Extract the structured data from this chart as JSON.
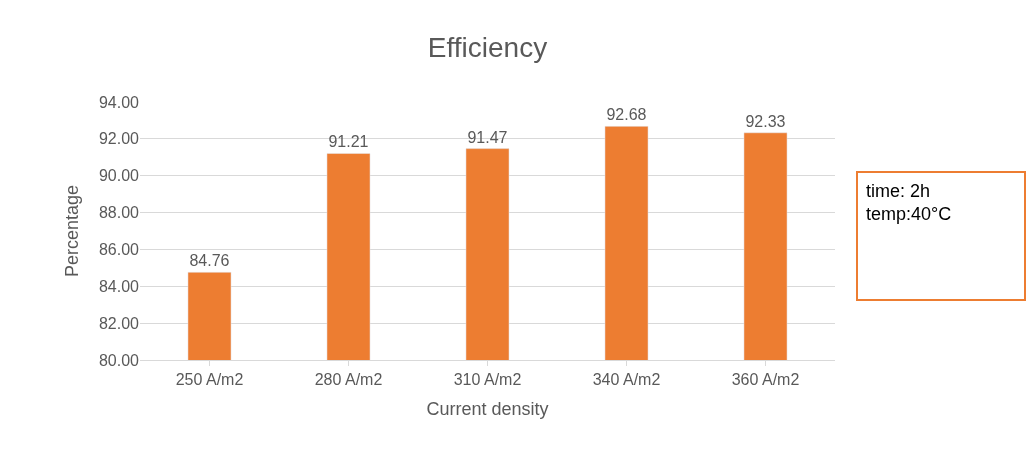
{
  "chart_data": {
    "type": "bar",
    "title": "Efficiency",
    "xlabel": "Current density",
    "ylabel": "Percentage",
    "categories": [
      "250 A/m2",
      "280 A/m2",
      "310 A/m2",
      "340 A/m2",
      "360 A/m2"
    ],
    "values": [
      84.76,
      91.21,
      91.47,
      92.68,
      92.33
    ],
    "color": "#ed7d31",
    "ylim": [
      80,
      94
    ],
    "yticks": [
      {
        "value": 80,
        "label": "80.00"
      },
      {
        "value": 82,
        "label": "82.00"
      },
      {
        "value": 84,
        "label": "84.00"
      },
      {
        "value": 86,
        "label": "86.00"
      },
      {
        "value": 88,
        "label": "88.00"
      },
      {
        "value": 90,
        "label": "90.00"
      },
      {
        "value": 92,
        "label": "92.00"
      },
      {
        "value": 94,
        "label": "94.00"
      }
    ],
    "data_labels": true,
    "grid": "y",
    "annotations": [
      "time: 2h\ntemp:40°C"
    ]
  }
}
